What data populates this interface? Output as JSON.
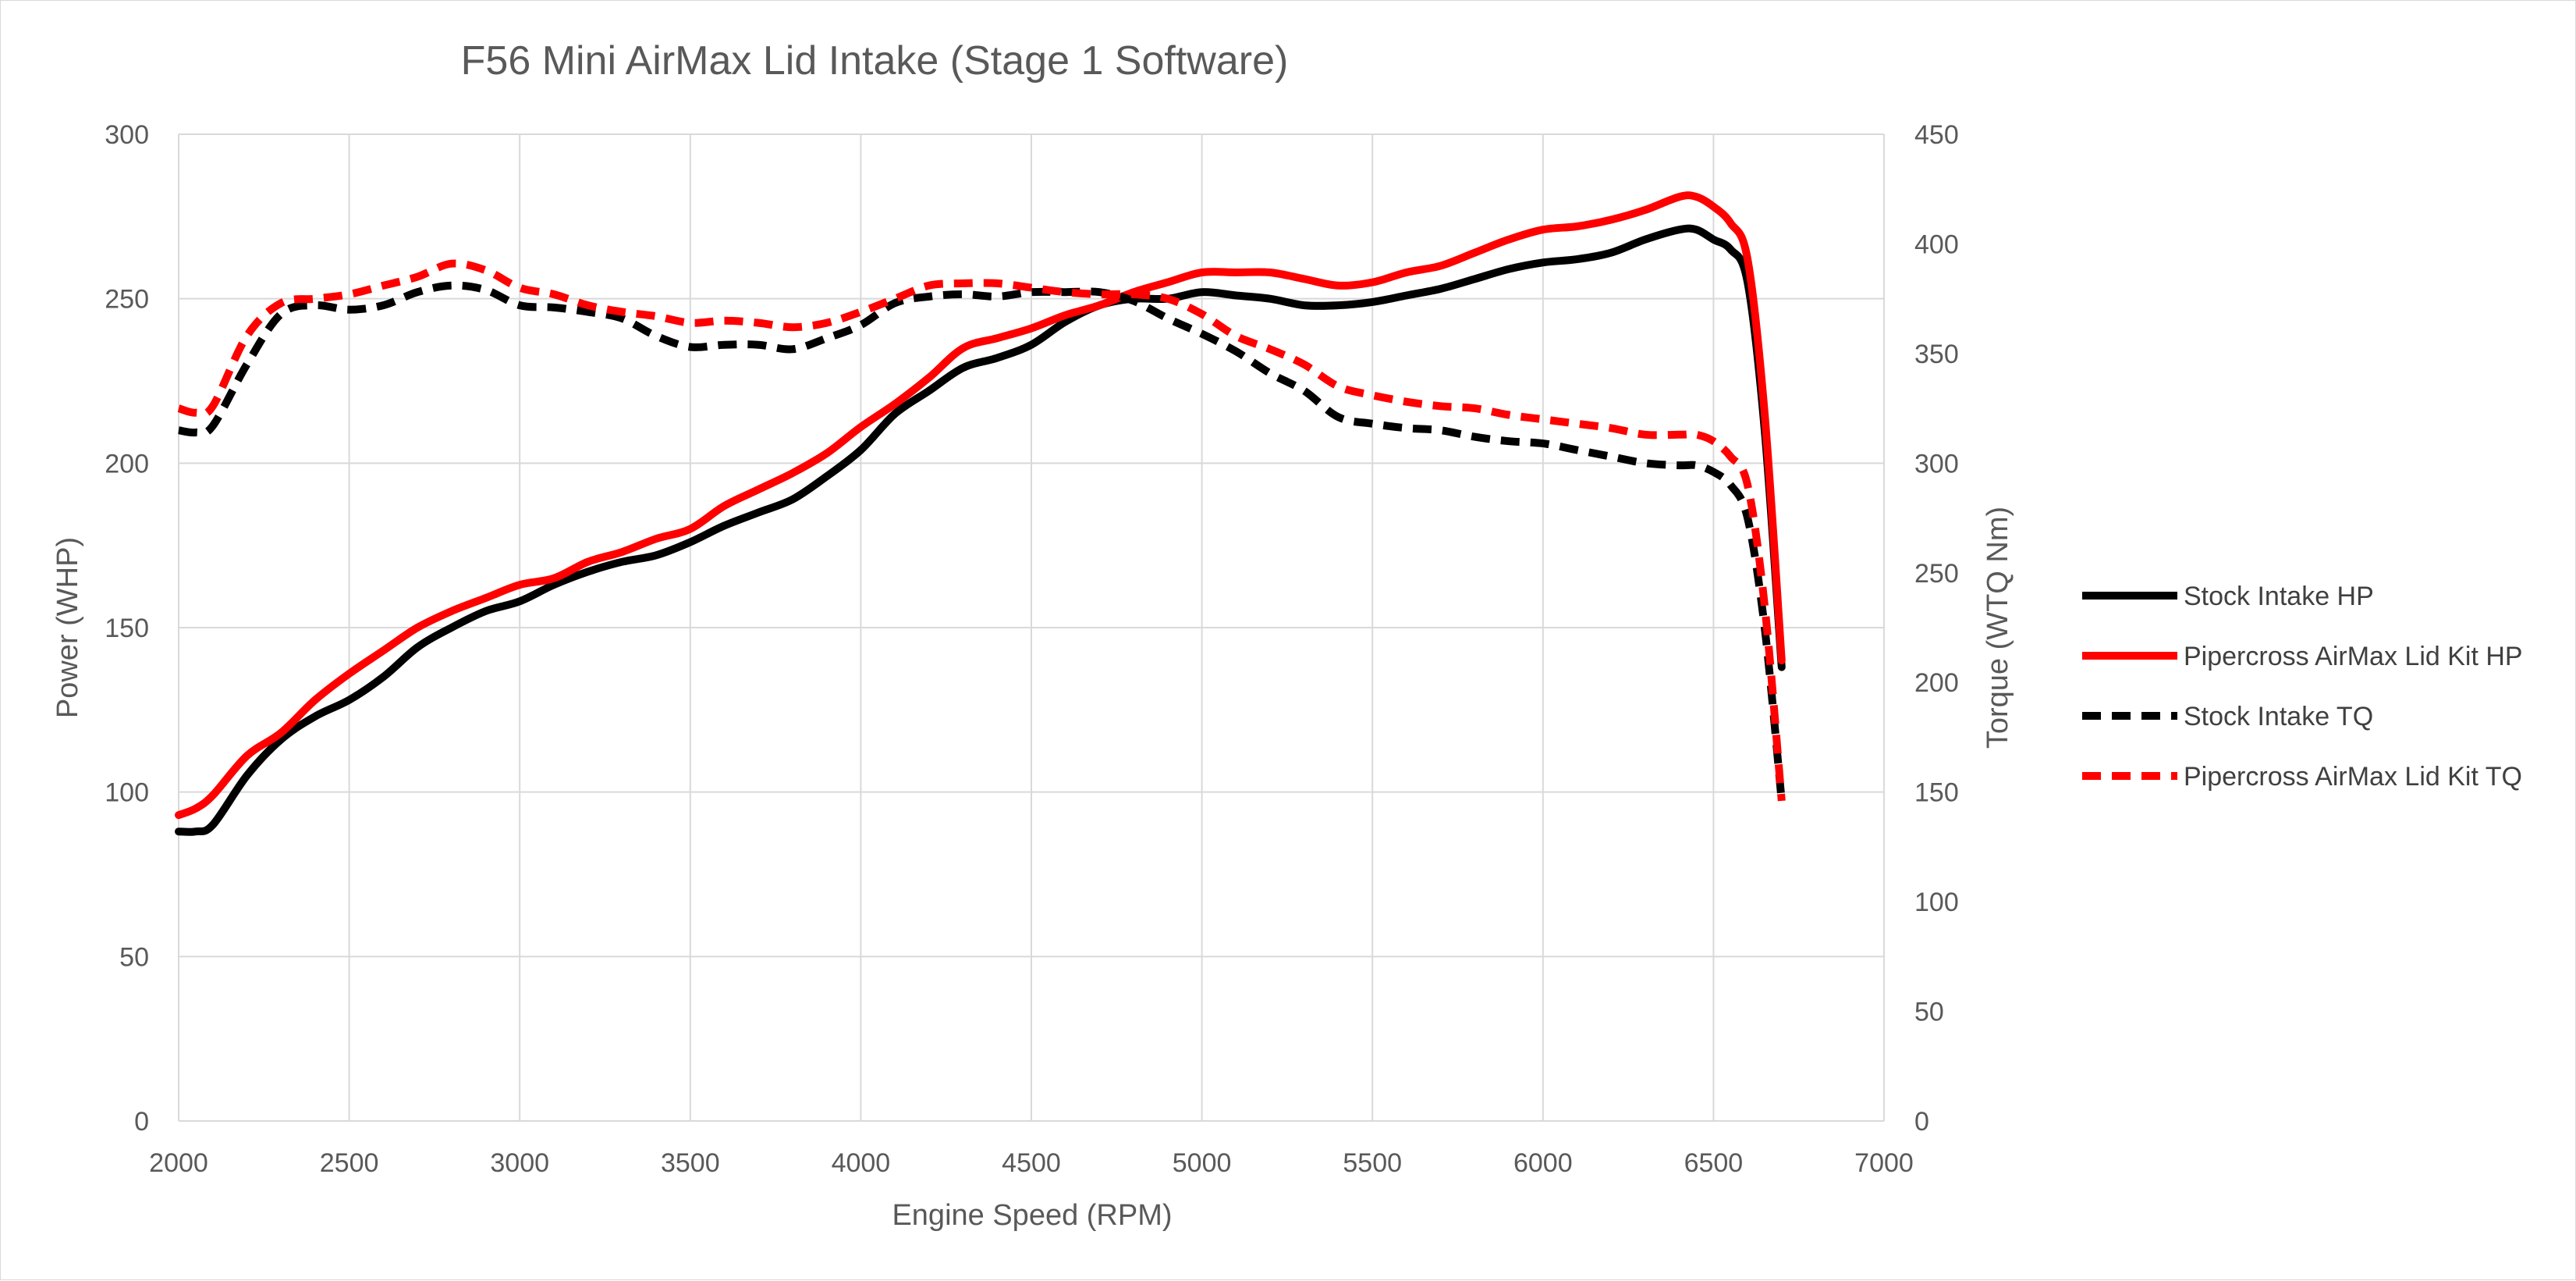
{
  "chart_data": {
    "type": "line",
    "title": "F56 Mini AirMax Lid Intake (Stage 1 Software)",
    "xlabel": "Engine Speed (RPM)",
    "ylabel": "Power (WHP)",
    "y2label": "Torque (WTQ Nm)",
    "xlim": [
      2000,
      7000
    ],
    "ylim": [
      0,
      300
    ],
    "y2lim": [
      0,
      450
    ],
    "x_ticks": [
      "2000",
      "2500",
      "3000",
      "3500",
      "4000",
      "4500",
      "5000",
      "5500",
      "6000",
      "6500",
      "7000"
    ],
    "y_ticks": [
      "0",
      "50",
      "100",
      "150",
      "200",
      "250",
      "300"
    ],
    "y2_ticks": [
      "0",
      "50",
      "100",
      "150",
      "200",
      "250",
      "300",
      "350",
      "400",
      "450"
    ],
    "grid": true,
    "legend_position": "right",
    "series": [
      {
        "name": "Stock Intake HP",
        "axis": "left",
        "color": "#000000",
        "dash": "solid",
        "points": [
          [
            2000,
            88
          ],
          [
            2050,
            88
          ],
          [
            2100,
            90
          ],
          [
            2200,
            105
          ],
          [
            2300,
            116
          ],
          [
            2400,
            123
          ],
          [
            2500,
            128
          ],
          [
            2600,
            135
          ],
          [
            2700,
            144
          ],
          [
            2800,
            150
          ],
          [
            2900,
            155
          ],
          [
            3000,
            158
          ],
          [
            3100,
            163
          ],
          [
            3200,
            167
          ],
          [
            3300,
            170
          ],
          [
            3400,
            172
          ],
          [
            3500,
            176
          ],
          [
            3600,
            181
          ],
          [
            3700,
            185
          ],
          [
            3800,
            189
          ],
          [
            3900,
            196
          ],
          [
            4000,
            204
          ],
          [
            4100,
            215
          ],
          [
            4200,
            222
          ],
          [
            4300,
            229
          ],
          [
            4400,
            232
          ],
          [
            4500,
            236
          ],
          [
            4600,
            243
          ],
          [
            4700,
            248
          ],
          [
            4800,
            250
          ],
          [
            4900,
            250
          ],
          [
            5000,
            252
          ],
          [
            5100,
            251
          ],
          [
            5200,
            250
          ],
          [
            5300,
            248
          ],
          [
            5400,
            248
          ],
          [
            5500,
            249
          ],
          [
            5600,
            251
          ],
          [
            5700,
            253
          ],
          [
            5800,
            256
          ],
          [
            5900,
            259
          ],
          [
            6000,
            261
          ],
          [
            6100,
            262
          ],
          [
            6200,
            264
          ],
          [
            6300,
            268
          ],
          [
            6400,
            271
          ],
          [
            6450,
            271
          ],
          [
            6500,
            268
          ],
          [
            6550,
            265
          ],
          [
            6600,
            255
          ],
          [
            6650,
            210
          ],
          [
            6700,
            138
          ]
        ]
      },
      {
        "name": "Pipercross AirMax Lid Kit HP",
        "axis": "left",
        "color": "#ff0000",
        "dash": "solid",
        "points": [
          [
            2000,
            93
          ],
          [
            2050,
            95
          ],
          [
            2100,
            99
          ],
          [
            2200,
            111
          ],
          [
            2300,
            118
          ],
          [
            2400,
            128
          ],
          [
            2500,
            136
          ],
          [
            2600,
            143
          ],
          [
            2700,
            150
          ],
          [
            2800,
            155
          ],
          [
            2900,
            159
          ],
          [
            3000,
            163
          ],
          [
            3100,
            165
          ],
          [
            3200,
            170
          ],
          [
            3300,
            173
          ],
          [
            3400,
            177
          ],
          [
            3500,
            180
          ],
          [
            3600,
            187
          ],
          [
            3700,
            192
          ],
          [
            3800,
            197
          ],
          [
            3900,
            203
          ],
          [
            4000,
            211
          ],
          [
            4100,
            218
          ],
          [
            4200,
            226
          ],
          [
            4300,
            235
          ],
          [
            4400,
            238
          ],
          [
            4500,
            241
          ],
          [
            4600,
            245
          ],
          [
            4700,
            248
          ],
          [
            4800,
            252
          ],
          [
            4900,
            255
          ],
          [
            5000,
            258
          ],
          [
            5100,
            258
          ],
          [
            5200,
            258
          ],
          [
            5300,
            256
          ],
          [
            5400,
            254
          ],
          [
            5500,
            255
          ],
          [
            5600,
            258
          ],
          [
            5700,
            260
          ],
          [
            5800,
            264
          ],
          [
            5900,
            268
          ],
          [
            6000,
            271
          ],
          [
            6100,
            272
          ],
          [
            6200,
            274
          ],
          [
            6300,
            277
          ],
          [
            6400,
            281
          ],
          [
            6450,
            281
          ],
          [
            6500,
            278
          ],
          [
            6550,
            273
          ],
          [
            6600,
            262
          ],
          [
            6650,
            215
          ],
          [
            6700,
            140
          ]
        ]
      },
      {
        "name": "Stock Intake TQ",
        "axis": "right",
        "color": "#000000",
        "dash": "dash",
        "points": [
          [
            2000,
            315
          ],
          [
            2050,
            314
          ],
          [
            2100,
            317
          ],
          [
            2200,
            345
          ],
          [
            2300,
            368
          ],
          [
            2400,
            372
          ],
          [
            2500,
            370
          ],
          [
            2600,
            372
          ],
          [
            2700,
            378
          ],
          [
            2800,
            381
          ],
          [
            2900,
            379
          ],
          [
            3000,
            372
          ],
          [
            3100,
            371
          ],
          [
            3200,
            369
          ],
          [
            3300,
            366
          ],
          [
            3400,
            358
          ],
          [
            3500,
            353
          ],
          [
            3600,
            354
          ],
          [
            3700,
            354
          ],
          [
            3800,
            352
          ],
          [
            3900,
            357
          ],
          [
            4000,
            363
          ],
          [
            4100,
            373
          ],
          [
            4200,
            376
          ],
          [
            4300,
            377
          ],
          [
            4400,
            376
          ],
          [
            4500,
            378
          ],
          [
            4600,
            378
          ],
          [
            4700,
            378
          ],
          [
            4800,
            374
          ],
          [
            4900,
            366
          ],
          [
            5000,
            359
          ],
          [
            5100,
            351
          ],
          [
            5200,
            341
          ],
          [
            5300,
            333
          ],
          [
            5400,
            321
          ],
          [
            5500,
            318
          ],
          [
            5600,
            316
          ],
          [
            5700,
            315
          ],
          [
            5800,
            312
          ],
          [
            5900,
            310
          ],
          [
            6000,
            309
          ],
          [
            6100,
            306
          ],
          [
            6200,
            303
          ],
          [
            6300,
            300
          ],
          [
            6400,
            299
          ],
          [
            6450,
            299
          ],
          [
            6500,
            296
          ],
          [
            6550,
            290
          ],
          [
            6600,
            275
          ],
          [
            6650,
            225
          ],
          [
            6700,
            146
          ]
        ]
      },
      {
        "name": "Pipercross AirMax Lid Kit TQ",
        "axis": "right",
        "color": "#ff0000",
        "dash": "dash",
        "points": [
          [
            2000,
            325
          ],
          [
            2050,
            323
          ],
          [
            2100,
            326
          ],
          [
            2200,
            358
          ],
          [
            2300,
            373
          ],
          [
            2400,
            375
          ],
          [
            2500,
            377
          ],
          [
            2600,
            381
          ],
          [
            2700,
            385
          ],
          [
            2800,
            391
          ],
          [
            2900,
            388
          ],
          [
            3000,
            380
          ],
          [
            3100,
            377
          ],
          [
            3200,
            372
          ],
          [
            3300,
            369
          ],
          [
            3400,
            367
          ],
          [
            3500,
            364
          ],
          [
            3600,
            365
          ],
          [
            3700,
            364
          ],
          [
            3800,
            362
          ],
          [
            3900,
            364
          ],
          [
            4000,
            369
          ],
          [
            4100,
            375
          ],
          [
            4200,
            381
          ],
          [
            4300,
            382
          ],
          [
            4400,
            382
          ],
          [
            4500,
            380
          ],
          [
            4600,
            378
          ],
          [
            4700,
            377
          ],
          [
            4800,
            377
          ],
          [
            4900,
            375
          ],
          [
            5000,
            368
          ],
          [
            5100,
            358
          ],
          [
            5200,
            352
          ],
          [
            5300,
            345
          ],
          [
            5400,
            335
          ],
          [
            5500,
            331
          ],
          [
            5600,
            328
          ],
          [
            5700,
            326
          ],
          [
            5800,
            325
          ],
          [
            5900,
            322
          ],
          [
            6000,
            320
          ],
          [
            6100,
            318
          ],
          [
            6200,
            316
          ],
          [
            6300,
            313
          ],
          [
            6400,
            313
          ],
          [
            6450,
            313
          ],
          [
            6500,
            310
          ],
          [
            6550,
            303
          ],
          [
            6600,
            290
          ],
          [
            6650,
            235
          ],
          [
            6700,
            146
          ]
        ]
      }
    ]
  }
}
